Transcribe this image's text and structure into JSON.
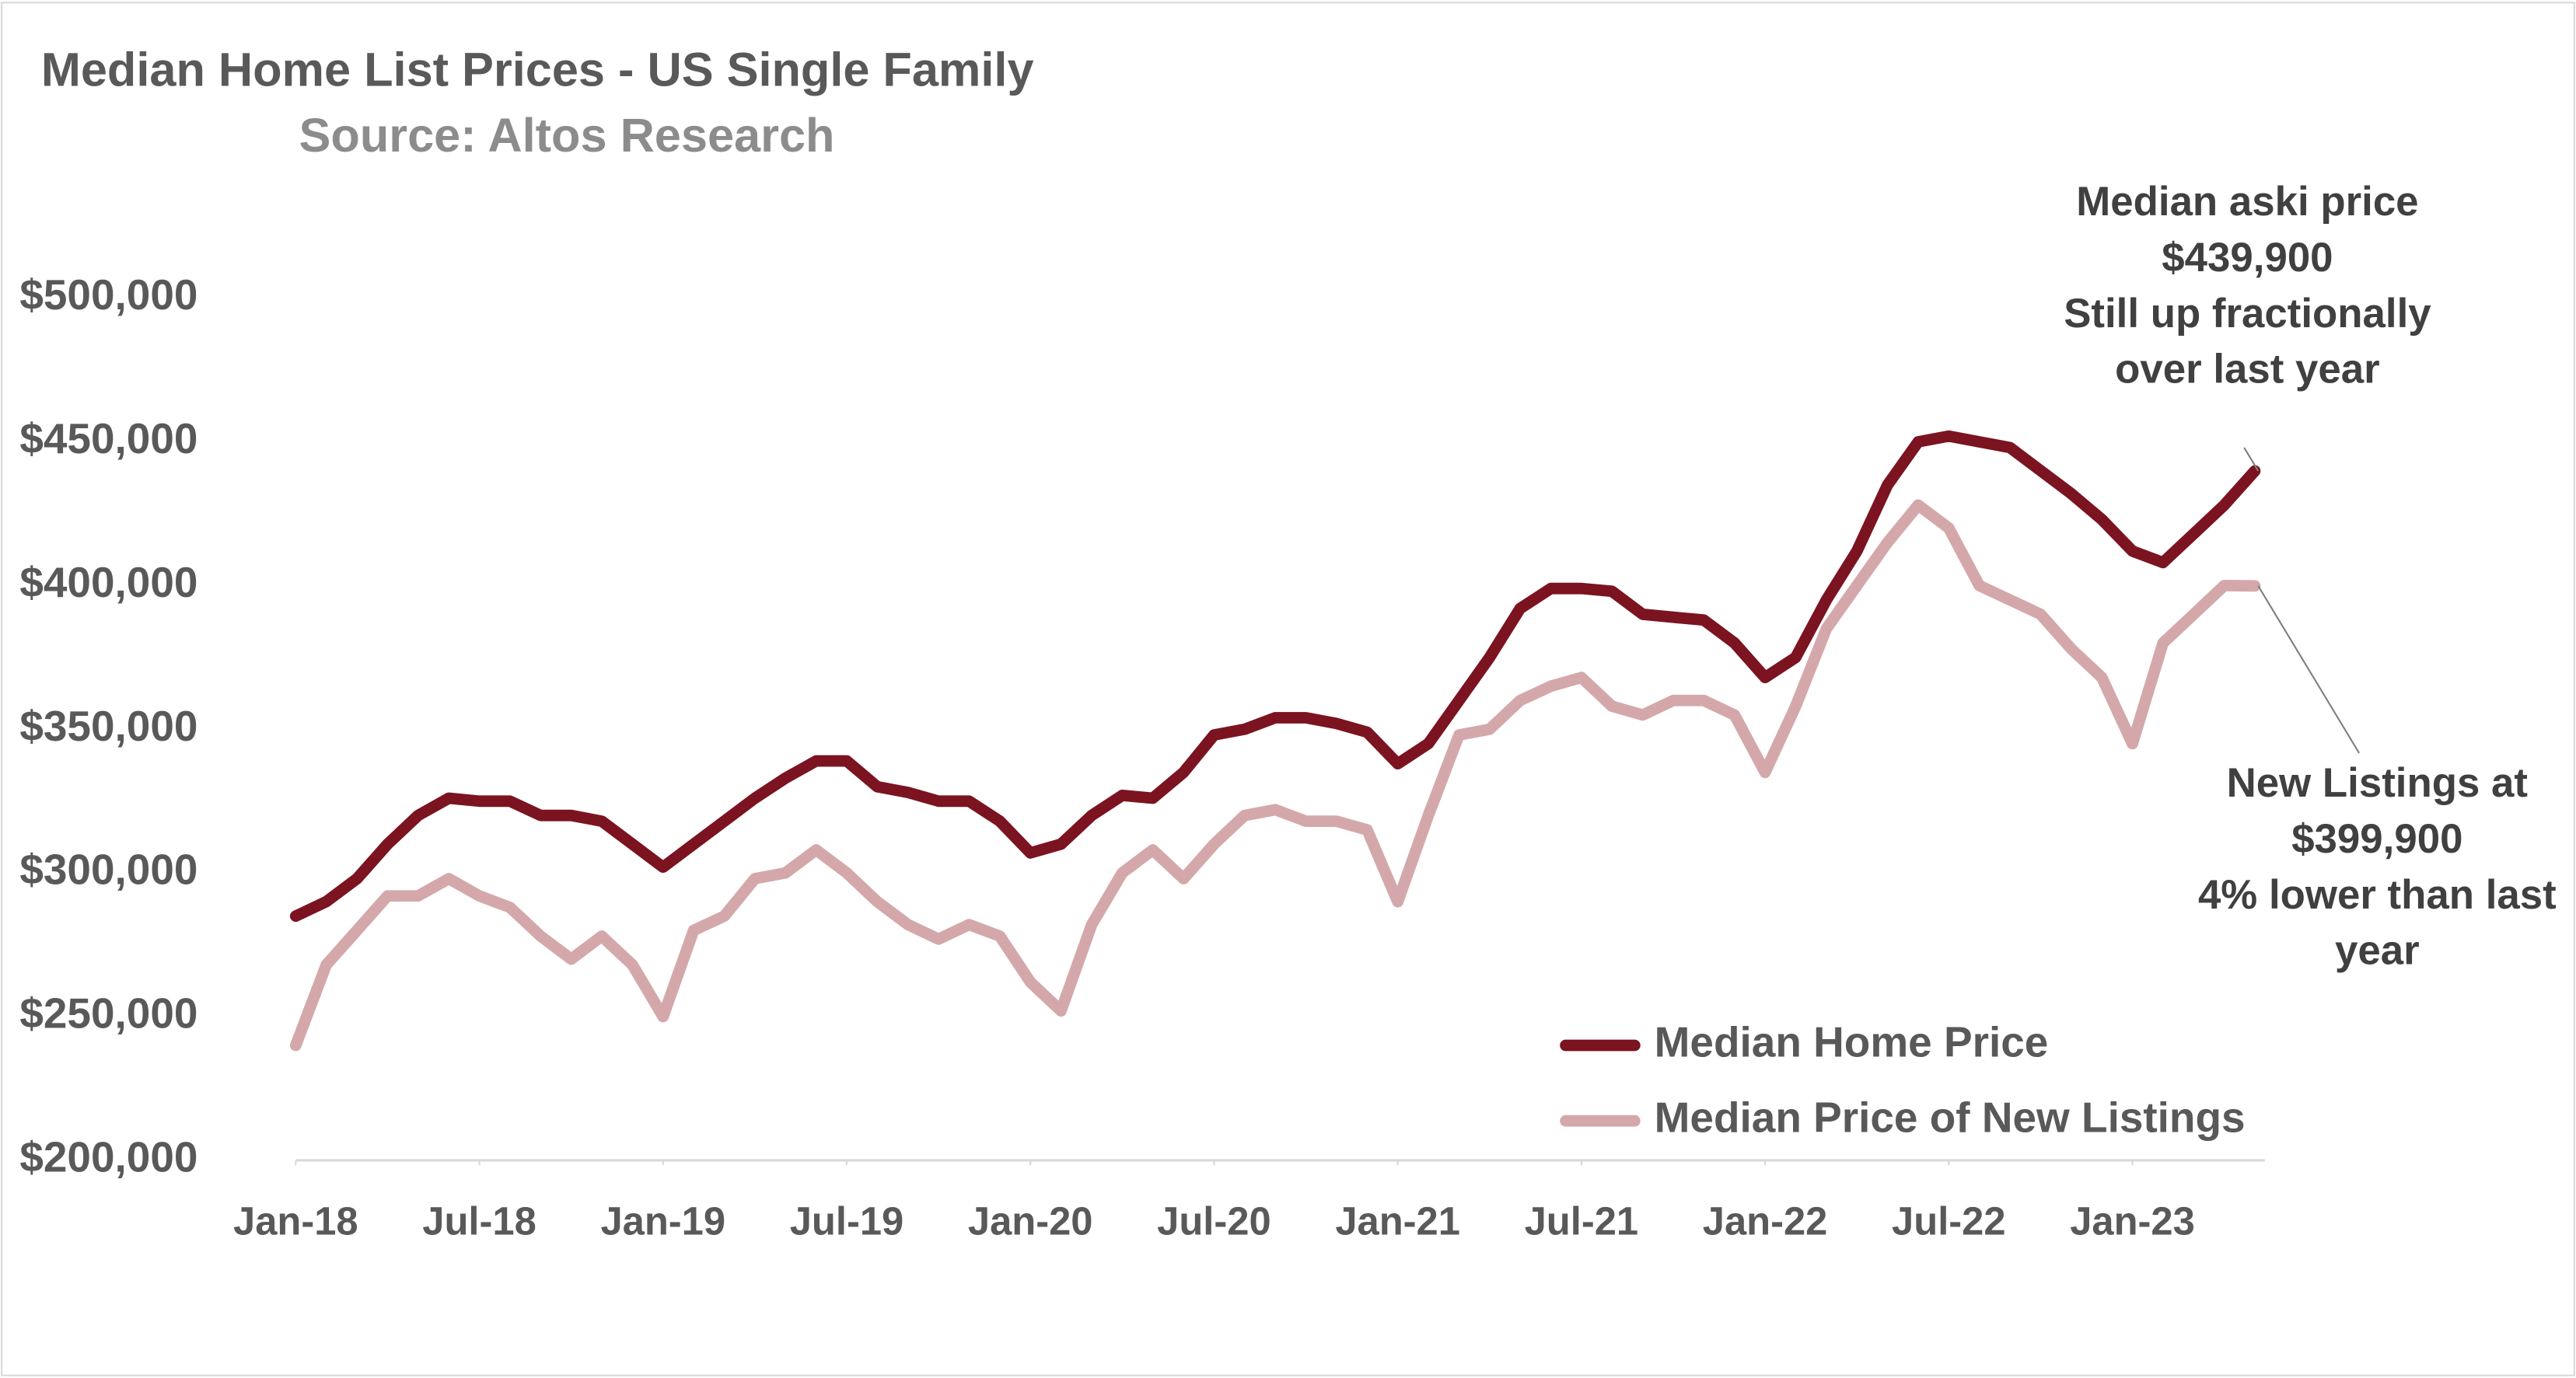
{
  "chart_data": {
    "type": "line",
    "title": "Median Home List Prices - US Single Family",
    "subtitle": "Source: Altos Research",
    "x": [
      "2018-01",
      "2018-02",
      "2018-03",
      "2018-04",
      "2018-05",
      "2018-06",
      "2018-07",
      "2018-08",
      "2018-09",
      "2018-10",
      "2018-11",
      "2018-12",
      "2019-01",
      "2019-02",
      "2019-03",
      "2019-04",
      "2019-05",
      "2019-06",
      "2019-07",
      "2019-08",
      "2019-09",
      "2019-10",
      "2019-11",
      "2019-12",
      "2020-01",
      "2020-02",
      "2020-03",
      "2020-04",
      "2020-05",
      "2020-06",
      "2020-07",
      "2020-08",
      "2020-09",
      "2020-10",
      "2020-11",
      "2020-12",
      "2021-01",
      "2021-02",
      "2021-03",
      "2021-04",
      "2021-05",
      "2021-06",
      "2021-07",
      "2021-08",
      "2021-09",
      "2021-10",
      "2021-11",
      "2021-12",
      "2022-01",
      "2022-02",
      "2022-03",
      "2022-04",
      "2022-05",
      "2022-06",
      "2022-07",
      "2022-08",
      "2022-09",
      "2022-10",
      "2022-11",
      "2022-12",
      "2023-01",
      "2023-02",
      "2023-03",
      "2023-04",
      "2023-05"
    ],
    "series": [
      {
        "name": "Median Home Price",
        "color": "#7b1420",
        "values": [
          285000,
          290000,
          298000,
          310000,
          320000,
          326000,
          325000,
          325000,
          320000,
          320000,
          318000,
          310000,
          302000,
          310000,
          318000,
          326000,
          333000,
          339000,
          339000,
          330000,
          328000,
          325000,
          325000,
          318000,
          307000,
          310000,
          320000,
          327000,
          326000,
          335000,
          348000,
          350000,
          354000,
          354000,
          352000,
          349000,
          338000,
          345000,
          360000,
          375000,
          392000,
          399000,
          399000,
          398000,
          390000,
          389000,
          388000,
          380000,
          368000,
          375000,
          395000,
          412000,
          435000,
          450000,
          452000,
          450000,
          448000,
          440000,
          432000,
          423000,
          412000,
          408000,
          418000,
          428000,
          439900
        ]
      },
      {
        "name": "Median Price of New Listings",
        "color": "#d4a8aa",
        "values": [
          240000,
          268000,
          280000,
          292000,
          292000,
          298000,
          292000,
          288000,
          278000,
          270000,
          278000,
          268000,
          250000,
          280000,
          285000,
          298000,
          300000,
          308000,
          300000,
          290000,
          282000,
          277000,
          282000,
          278000,
          262000,
          252000,
          282000,
          300000,
          308000,
          298000,
          310000,
          320000,
          322000,
          318000,
          318000,
          315000,
          290000,
          320000,
          348000,
          350000,
          360000,
          365000,
          368000,
          358000,
          355000,
          360000,
          360000,
          355000,
          335000,
          358000,
          385000,
          400000,
          415000,
          428000,
          420000,
          400000,
          395000,
          390000,
          378000,
          368000,
          345000,
          380000,
          390000,
          400000,
          399900
        ]
      }
    ],
    "ylim": [
      200000,
      500000
    ],
    "yticks": [
      {
        "value": 200000,
        "label": "$200,000"
      },
      {
        "value": 250000,
        "label": "$250,000"
      },
      {
        "value": 300000,
        "label": "$300,000"
      },
      {
        "value": 350000,
        "label": "$350,000"
      },
      {
        "value": 400000,
        "label": "$400,000"
      },
      {
        "value": 450000,
        "label": "$450,000"
      },
      {
        "value": 500000,
        "label": "$500,000"
      }
    ],
    "xticks": [
      {
        "value": "2018-01",
        "label": "Jan-18"
      },
      {
        "value": "2018-07",
        "label": "Jul-18"
      },
      {
        "value": "2019-01",
        "label": "Jan-19"
      },
      {
        "value": "2019-07",
        "label": "Jul-19"
      },
      {
        "value": "2020-01",
        "label": "Jan-20"
      },
      {
        "value": "2020-07",
        "label": "Jul-20"
      },
      {
        "value": "2021-01",
        "label": "Jan-21"
      },
      {
        "value": "2021-07",
        "label": "Jul-21"
      },
      {
        "value": "2022-01",
        "label": "Jan-22"
      },
      {
        "value": "2022-07",
        "label": "Jul-22"
      },
      {
        "value": "2023-01",
        "label": "Jan-23"
      }
    ],
    "annotations": [
      {
        "lines": [
          "Median aski price",
          "$439,900",
          "Still up fractionally",
          "over last year"
        ],
        "series": 0
      },
      {
        "lines": [
          "New Listings at",
          "$399,900",
          "4% lower than last",
          "year"
        ],
        "series": 1
      }
    ]
  }
}
